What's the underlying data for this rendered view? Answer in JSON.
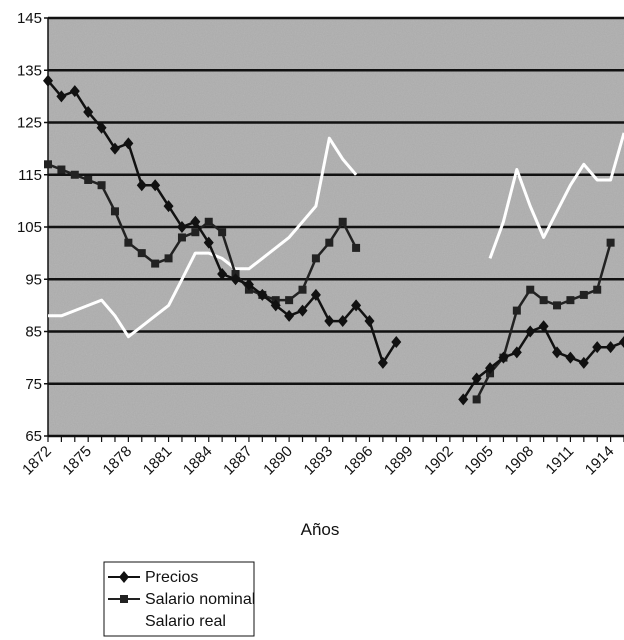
{
  "chart_data": {
    "type": "line",
    "title": "",
    "xlabel": "Años",
    "ylabel": "",
    "ylim": [
      65,
      145
    ],
    "yticks": [
      65,
      75,
      85,
      95,
      105,
      115,
      125,
      135,
      145
    ],
    "xlim": [
      1872,
      1915
    ],
    "xticks": [
      "1872",
      "1875",
      "1878",
      "1881",
      "1884",
      "1887",
      "1890",
      "1893",
      "1896",
      "1899",
      "1902",
      "1905",
      "1908",
      "1911",
      "1914"
    ],
    "grid": true,
    "legend_position": "bottom-left",
    "background_color": "#a9a9a9",
    "series": [
      {
        "name": "Precios",
        "color": "#111111",
        "marker": "diamond",
        "x": [
          1872,
          1873,
          1874,
          1875,
          1876,
          1877,
          1878,
          1879,
          1880,
          1881,
          1882,
          1883,
          1884,
          1885,
          1886,
          1887,
          1888,
          1889,
          1890,
          1891,
          1892,
          1893,
          1894,
          1895,
          1896,
          1897,
          1898,
          1903,
          1904,
          1905,
          1906,
          1907,
          1908,
          1909,
          1910,
          1911,
          1912,
          1913,
          1914,
          1915
        ],
        "values": [
          133,
          130,
          131,
          127,
          124,
          120,
          121,
          113,
          113,
          109,
          105,
          106,
          102,
          96,
          95,
          94,
          92,
          90,
          88,
          89,
          92,
          87,
          87,
          90,
          87,
          79,
          83,
          72,
          76,
          78,
          80,
          81,
          85,
          86,
          81,
          80,
          79,
          82,
          82,
          83
        ]
      },
      {
        "name": "Salario nominal",
        "color": "#222222",
        "marker": "square",
        "x": [
          1872,
          1873,
          1874,
          1875,
          1876,
          1877,
          1878,
          1879,
          1880,
          1881,
          1882,
          1883,
          1884,
          1885,
          1886,
          1887,
          1888,
          1889,
          1890,
          1891,
          1892,
          1893,
          1894,
          1895,
          1904,
          1905,
          1906,
          1907,
          1908,
          1909,
          1910,
          1911,
          1912,
          1913,
          1914
        ],
        "values": [
          117,
          116,
          115,
          114,
          113,
          108,
          102,
          100,
          98,
          99,
          103,
          104,
          106,
          104,
          96,
          93,
          92,
          91,
          91,
          93,
          99,
          102,
          106,
          101,
          72,
          77,
          80,
          89,
          93,
          91,
          90,
          91,
          92,
          93,
          102
        ]
      },
      {
        "name": "Salario real",
        "color": "#ffffff",
        "marker": "none",
        "x": [
          1872,
          1873,
          1874,
          1875,
          1876,
          1877,
          1878,
          1879,
          1880,
          1881,
          1882,
          1883,
          1884,
          1885,
          1886,
          1887,
          1888,
          1889,
          1890,
          1891,
          1892,
          1893,
          1894,
          1895,
          1905,
          1906,
          1907,
          1908,
          1909,
          1910,
          1911,
          1912,
          1913,
          1914,
          1915
        ],
        "values": [
          88,
          88,
          89,
          90,
          91,
          88,
          84,
          86,
          88,
          90,
          95,
          100,
          100,
          99,
          97,
          97,
          99,
          101,
          103,
          106,
          109,
          122,
          118,
          115,
          99,
          106,
          116,
          109,
          103,
          108,
          113,
          117,
          114,
          114,
          123
        ]
      }
    ]
  }
}
